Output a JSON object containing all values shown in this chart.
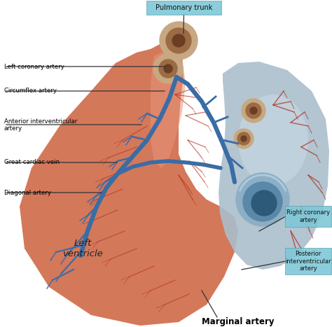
{
  "background_color": "#ffffff",
  "heart_base_color": "#D4785A",
  "heart_light_color": "#E8957A",
  "heart_shadow_color": "#C06040",
  "vein_color": "#3A6CA5",
  "artery_color": "#B03020",
  "aorta_body_color": "#AABFCC",
  "aorta_rim_color": "#8AAFC0",
  "aorta_dark_color": "#5588A0",
  "vessel_outer": "#C8A882",
  "vessel_mid": "#9B6B45",
  "vessel_inner": "#6B3D22",
  "label_box_color": "#7EC8D8",
  "label_line_color": "#333333",
  "bottom_label": "Marginal artery",
  "center_label": "Left\nventricle",
  "top_box_label": "Pulmonary trunk",
  "right_box1_label": "Right coronary\nartery",
  "right_box2_label": "Posterior\ninterventricular\nartery",
  "fig_width": 4.74,
  "fig_height": 4.67,
  "dpi": 100
}
